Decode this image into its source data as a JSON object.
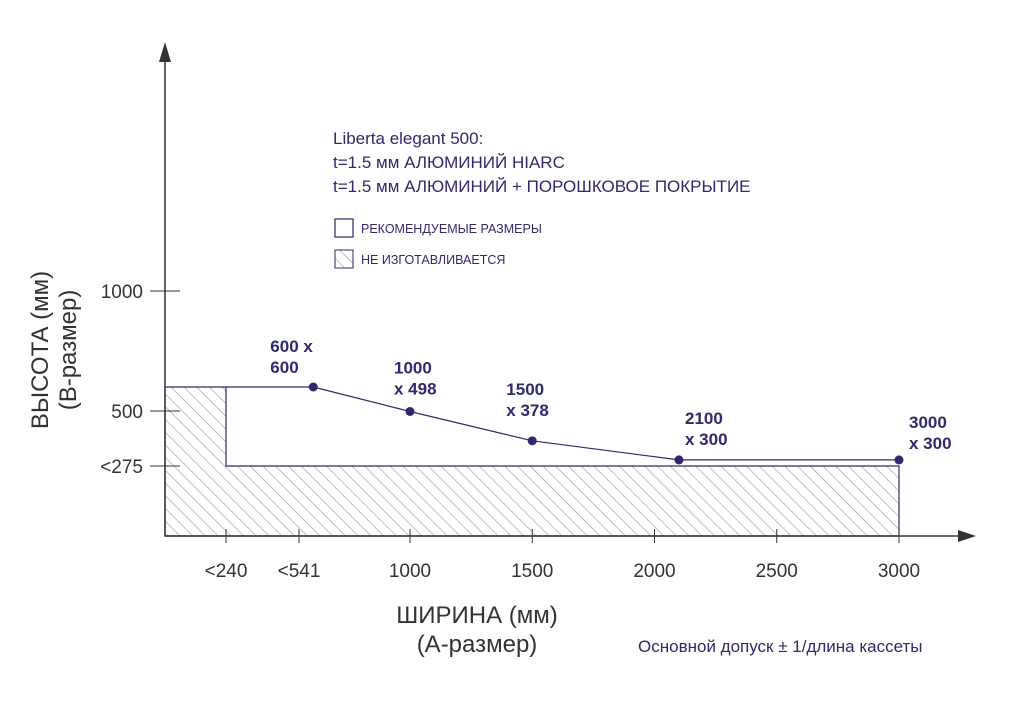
{
  "chart_data": {
    "type": "line",
    "xlabel": [
      "ШИРИНА (мм)",
      "(А-размер)"
    ],
    "ylabel": [
      "ВЫСОТА (мм)",
      "(В-размер)"
    ],
    "x_ticks": [
      {
        "value": 240,
        "label": "<240"
      },
      {
        "value": 541,
        "label": "<541"
      },
      {
        "value": 1000,
        "label": "1000"
      },
      {
        "value": 1500,
        "label": "1500"
      },
      {
        "value": 2000,
        "label": "2000"
      },
      {
        "value": 2500,
        "label": "2500"
      },
      {
        "value": 3000,
        "label": "3000"
      }
    ],
    "y_ticks": [
      {
        "value": 275,
        "label": "<275"
      },
      {
        "value": 500,
        "label": "500"
      },
      {
        "value": 1000,
        "label": "1000"
      }
    ],
    "series": [
      {
        "points": [
          {
            "x": 600,
            "y": 600,
            "label": [
              "600 x",
              "600"
            ]
          },
          {
            "x": 1000,
            "y": 498,
            "label": [
              "1000",
              "x 498"
            ]
          },
          {
            "x": 1500,
            "y": 378,
            "label": [
              "1500",
              "x 378"
            ]
          },
          {
            "x": 2100,
            "y": 300,
            "label": [
              "2100",
              "x 300"
            ]
          },
          {
            "x": 3000,
            "y": 300,
            "label": [
              "3000",
              "x 300"
            ]
          }
        ]
      }
    ],
    "not_manufactured_region": {
      "outline": [
        {
          "x": 0,
          "y": 0
        },
        {
          "x": 0,
          "y": 600
        },
        {
          "x": 240,
          "y": 600
        },
        {
          "x": 240,
          "y": 275
        },
        {
          "x": 3000,
          "y": 275
        },
        {
          "x": 3000,
          "y": 0
        }
      ]
    },
    "info_lines": [
      "Liberta elegant 500:",
      "t=1.5 мм АЛЮМИНИЙ HIARC",
      "t=1.5 мм АЛЮМИНИЙ + ПОРОШКОВОЕ ПОКРЫТИЕ"
    ],
    "legend": [
      {
        "label": "РЕКОМЕНДУЕМЫЕ РАЗМЕРЫ",
        "style": "empty-box"
      },
      {
        "label": "НЕ ИЗГОТАВЛИВАЕТСЯ",
        "style": "hatched-box"
      }
    ],
    "note": "Основной допуск ± 1/длина кассеты",
    "colors": {
      "accent": "#2e2a6b",
      "axis": "#333333"
    }
  }
}
